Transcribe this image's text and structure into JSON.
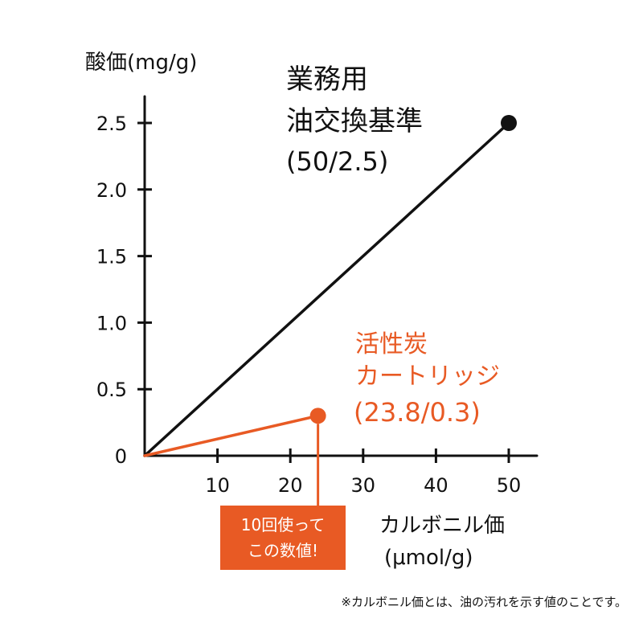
{
  "chart_data": {
    "type": "line",
    "ylabel": "酸価(mg/g)",
    "xlabel_line1": "カルボニル価",
    "xlabel_line2": "(μmol/g)",
    "x_ticks": [
      "10",
      "20",
      "30",
      "40",
      "50"
    ],
    "y_ticks": [
      "0",
      "0.5",
      "1.0",
      "1.5",
      "2.0",
      "2.5"
    ],
    "xlim": [
      0,
      54
    ],
    "ylim": [
      0,
      2.7
    ],
    "series": [
      {
        "key": "commercial",
        "color": "#111111",
        "points": [
          [
            0,
            0
          ],
          [
            50,
            2.5
          ]
        ],
        "label_lines": [
          "業務用",
          "油交換基準",
          "(50/2.5)"
        ]
      },
      {
        "key": "charcoal",
        "color": "#e85a24",
        "points": [
          [
            0,
            0
          ],
          [
            23.8,
            0.3
          ]
        ],
        "label_lines": [
          "活性炭",
          "カートリッジ",
          "(23.8/0.3)"
        ]
      }
    ]
  },
  "callout": {
    "line1": "10回使って",
    "line2": "この数値!",
    "color": "#e85a24"
  },
  "footnote": "※カルボニル価とは、油の汚れを示す値のことです。"
}
